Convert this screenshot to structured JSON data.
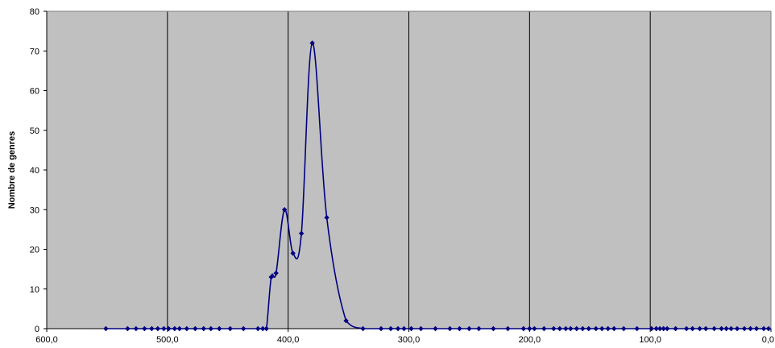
{
  "chart_data": {
    "type": "line",
    "title": "",
    "xlabel": "",
    "ylabel": "Nombre de genres",
    "x_reversed": true,
    "xlim": [
      600,
      0
    ],
    "ylim": [
      0,
      80
    ],
    "x_ticks": [
      600,
      500,
      400,
      300,
      200,
      100,
      0
    ],
    "x_tick_labels": [
      "600,0",
      "500,0",
      "400,0",
      "300,0",
      "200,0",
      "100,0",
      "0,0"
    ],
    "y_ticks": [
      0,
      10,
      20,
      30,
      40,
      50,
      60,
      70,
      80
    ],
    "y_tick_labels": [
      "0",
      "10",
      "20",
      "30",
      "40",
      "50",
      "60",
      "70",
      "80"
    ],
    "grid": {
      "vertical": true,
      "horizontal": false
    },
    "legend": "none",
    "series": [
      {
        "marker": "diamond",
        "smooth": true,
        "points": [
          [
            551,
            0
          ],
          [
            533,
            0
          ],
          [
            526,
            0
          ],
          [
            519,
            0
          ],
          [
            513,
            0
          ],
          [
            508,
            0
          ],
          [
            503,
            0
          ],
          [
            499,
            0
          ],
          [
            494,
            0
          ],
          [
            490,
            0
          ],
          [
            484,
            0
          ],
          [
            477,
            0
          ],
          [
            470,
            0
          ],
          [
            464,
            0
          ],
          [
            457,
            0
          ],
          [
            448,
            0
          ],
          [
            437,
            0
          ],
          [
            425,
            0
          ],
          [
            421,
            0
          ],
          [
            418,
            0
          ],
          [
            414,
            13
          ],
          [
            410,
            14
          ],
          [
            403,
            30
          ],
          [
            396,
            19
          ],
          [
            389,
            24
          ],
          [
            380,
            72
          ],
          [
            368,
            28
          ],
          [
            352,
            2
          ],
          [
            338,
            0
          ],
          [
            323,
            0
          ],
          [
            315,
            0
          ],
          [
            309,
            0
          ],
          [
            304,
            0
          ],
          [
            298,
            0
          ],
          [
            290,
            0
          ],
          [
            278,
            0
          ],
          [
            266,
            0
          ],
          [
            258,
            0
          ],
          [
            250,
            0
          ],
          [
            242,
            0
          ],
          [
            230,
            0
          ],
          [
            218,
            0
          ],
          [
            205,
            0
          ],
          [
            200,
            0
          ],
          [
            196,
            0
          ],
          [
            188,
            0
          ],
          [
            180,
            0
          ],
          [
            175,
            0
          ],
          [
            170,
            0
          ],
          [
            166,
            0
          ],
          [
            161,
            0
          ],
          [
            156,
            0
          ],
          [
            151,
            0
          ],
          [
            145,
            0
          ],
          [
            140,
            0
          ],
          [
            135,
            0
          ],
          [
            130,
            0
          ],
          [
            122,
            0
          ],
          [
            111,
            0
          ],
          [
            99,
            0
          ],
          [
            95,
            0
          ],
          [
            92,
            0
          ],
          [
            89,
            0
          ],
          [
            86,
            0
          ],
          [
            79,
            0
          ],
          [
            70,
            0
          ],
          [
            65,
            0
          ],
          [
            59,
            0
          ],
          [
            54,
            0
          ],
          [
            47,
            0
          ],
          [
            41,
            0
          ],
          [
            37,
            0
          ],
          [
            33,
            0
          ],
          [
            28,
            0
          ],
          [
            22,
            0
          ],
          [
            17,
            0
          ],
          [
            12,
            0
          ],
          [
            6,
            0
          ],
          [
            2,
            0
          ]
        ]
      }
    ]
  },
  "colors": {
    "plot_background": "#c0c0c0",
    "gridline": "#000000",
    "series": "#000080"
  }
}
